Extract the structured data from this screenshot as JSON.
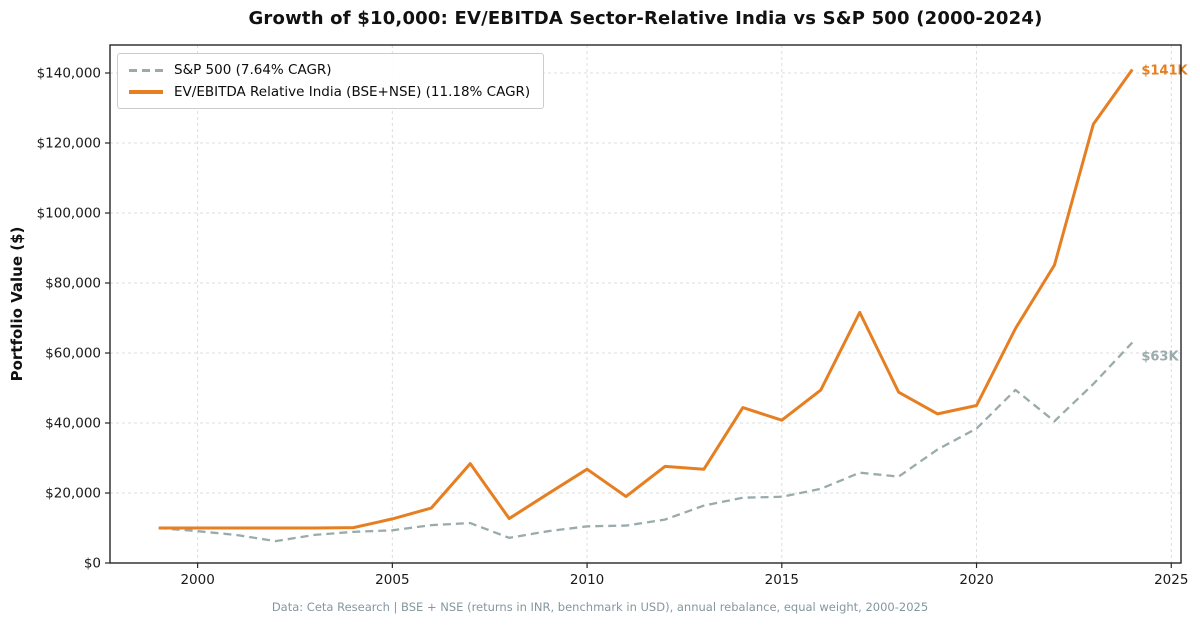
{
  "title": "Growth of $10,000: EV/EBITDA Sector-Relative India vs S&P 500 (2000-2024)",
  "caption": "Data: Ceta Research | BSE + NSE (returns in INR, benchmark in USD), annual rebalance, equal weight, 2000-2025",
  "colors": {
    "sp500_line": "#9aabab",
    "strategy_line": "#e67f22",
    "grid": "#dcdede",
    "spine": "#262626",
    "tick_label": "#1a1a1a",
    "caption_text": "#85979e"
  },
  "chart_data": {
    "type": "line",
    "title": "Growth of $10,000: EV/EBITDA Sector-Relative India vs S&P 500 (2000-2024)",
    "xlabel": "",
    "ylabel": "Portfolio Value ($)",
    "caption": "Data: Ceta Research | BSE + NSE (returns in INR, benchmark in USD), annual rebalance, equal weight, 2000-2025",
    "grid": true,
    "legend_position": "upper left",
    "xlim": [
      1997.75,
      2025.25
    ],
    "ylim": [
      0,
      148000
    ],
    "xticks": [
      2000,
      2005,
      2010,
      2015,
      2020,
      2025
    ],
    "yticks": [
      {
        "value": 0,
        "label": "$0"
      },
      {
        "value": 20000,
        "label": "$20,000"
      },
      {
        "value": 40000,
        "label": "$40,000"
      },
      {
        "value": 60000,
        "label": "$60,000"
      },
      {
        "value": 80000,
        "label": "$80,000"
      },
      {
        "value": 100000,
        "label": "$100,000"
      },
      {
        "value": 120000,
        "label": "$120,000"
      },
      {
        "value": 140000,
        "label": "$140,000"
      }
    ],
    "x": [
      1999,
      2000,
      2001,
      2002,
      2003,
      2004,
      2005,
      2006,
      2007,
      2008,
      2009,
      2010,
      2011,
      2012,
      2013,
      2014,
      2015,
      2016,
      2017,
      2018,
      2019,
      2020,
      2021,
      2022,
      2023,
      2024
    ],
    "series": [
      {
        "name": "S&P 500 (7.64% CAGR)",
        "color": "#9aabab",
        "line_style": "dashed",
        "end_label": "$63K",
        "values": [
          10000,
          9090,
          8010,
          6240,
          8030,
          8900,
          9340,
          10815,
          11410,
          7190,
          9090,
          10470,
          10690,
          12400,
          16410,
          18660,
          18920,
          21190,
          25810,
          24680,
          32450,
          38420,
          49450,
          40500,
          51150,
          63000
        ]
      },
      {
        "name": "EV/EBITDA Relative India (BSE+NSE) (11.18% CAGR)",
        "color": "#e67f22",
        "line_style": "solid",
        "end_label": "$141K",
        "values": [
          10000,
          10000,
          10000,
          10000,
          10000,
          10100,
          12600,
          15700,
          28400,
          12700,
          19800,
          26800,
          19000,
          27600,
          26800,
          44400,
          40800,
          49400,
          71600,
          48800,
          42600,
          45000,
          67000,
          85100,
          125400,
          141000
        ]
      }
    ]
  }
}
